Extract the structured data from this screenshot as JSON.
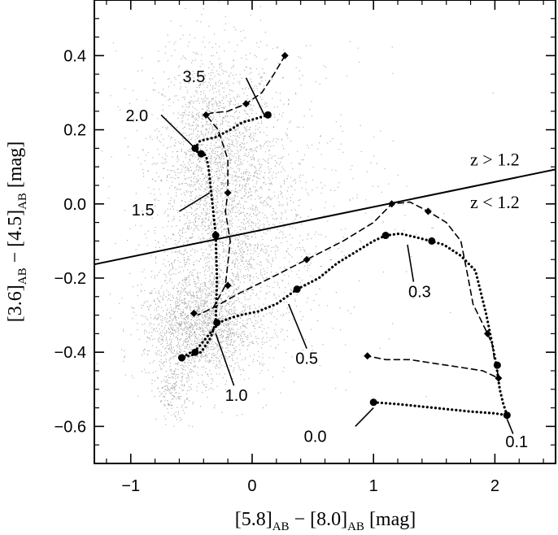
{
  "chart_data": {
    "type": "scatter",
    "title": "",
    "xlabel": {
      "a": "[5.8]",
      "a_sub": "AB",
      "mid": " − ",
      "b": "[8.0]",
      "b_sub": "AB",
      "unit": " [mag]"
    },
    "ylabel": {
      "a": "[3.6]",
      "a_sub": "AB",
      "mid": " − ",
      "b": "[4.5]",
      "b_sub": "AB",
      "unit": " [mag]"
    },
    "xlim": [
      -1.3,
      2.5
    ],
    "ylim": [
      -0.7,
      0.55
    ],
    "xticks": [
      {
        "value": -1,
        "label": "−1"
      },
      {
        "value": 0,
        "label": "0"
      },
      {
        "value": 1,
        "label": "1"
      },
      {
        "value": 2,
        "label": "2"
      }
    ],
    "yticks": [
      {
        "value": 0.4,
        "label": "0.4"
      },
      {
        "value": 0.2,
        "label": "0.2"
      },
      {
        "value": 0.0,
        "label": "0.0"
      },
      {
        "value": -0.2,
        "label": "−0.2"
      },
      {
        "value": -0.4,
        "label": "−0.4"
      },
      {
        "value": -0.6,
        "label": "−0.6"
      }
    ],
    "background_points": {
      "description_color": "#a8a8a8",
      "clusters": [
        {
          "cx": -0.3,
          "cy": 0.12,
          "sx": 0.25,
          "sy": 0.15,
          "n": 1900
        },
        {
          "cx": -0.45,
          "cy": -0.33,
          "sx": 0.22,
          "sy": 0.07,
          "n": 1700
        },
        {
          "cx": -0.15,
          "cy": -0.13,
          "sx": 0.3,
          "sy": 0.13,
          "n": 1000
        },
        {
          "cx": -0.65,
          "cy": -0.5,
          "sx": 0.07,
          "sy": 0.04,
          "n": 200
        },
        {
          "cx": 0.0,
          "cy": 0.0,
          "sx": 0.6,
          "sy": 0.25,
          "n": 700
        }
      ]
    },
    "dividing_line": {
      "x": [
        -1.3,
        2.5
      ],
      "y": [
        -0.163,
        0.093
      ]
    },
    "region_labels": [
      {
        "text": "z > 1.2",
        "x": 2.0,
        "y": 0.115
      },
      {
        "text": "z < 1.2",
        "x": 2.0,
        "y": 0.0
      }
    ],
    "series": [
      {
        "style": "dotted",
        "marker": "circle",
        "x": [
          2.1,
          2.07,
          2.04,
          2.01,
          1.98,
          1.93,
          1.84,
          1.72,
          1.58,
          1.47,
          1.35,
          1.22,
          1.1,
          1.0,
          0.85,
          0.7,
          0.55,
          0.37,
          0.2,
          0.05,
          -0.1,
          -0.2,
          -0.27,
          -0.35,
          -0.45,
          -0.58,
          -0.52,
          -0.42,
          -0.34,
          -0.3,
          -0.29,
          -0.3,
          -0.32,
          -0.34,
          -0.36,
          -0.38,
          -0.4,
          -0.45,
          -0.47,
          -0.43,
          -0.3,
          -0.18,
          -0.08,
          0.03,
          0.13
        ],
        "y": [
          -0.57,
          -0.54,
          -0.5,
          -0.43,
          -0.38,
          -0.3,
          -0.18,
          -0.14,
          -0.11,
          -0.1,
          -0.09,
          -0.08,
          -0.085,
          -0.1,
          -0.13,
          -0.16,
          -0.2,
          -0.23,
          -0.27,
          -0.29,
          -0.3,
          -0.31,
          -0.32,
          -0.35,
          -0.39,
          -0.415,
          -0.41,
          -0.4,
          -0.36,
          -0.32,
          -0.2,
          -0.085,
          -0.02,
          0.04,
          0.1,
          0.13,
          0.135,
          0.14,
          0.15,
          0.17,
          0.18,
          0.2,
          0.22,
          0.23,
          0.24
        ]
      },
      {
        "style": "dotted",
        "marker": "none",
        "x": [
          1.0,
          1.2,
          1.5,
          1.8,
          2.0,
          2.1
        ],
        "y": [
          -0.535,
          -0.54,
          -0.55,
          -0.56,
          -0.565,
          -0.57
        ]
      },
      {
        "style": "dashed",
        "marker": "diamond",
        "x": [
          0.27,
          0.18,
          0.08,
          -0.05,
          -0.2,
          -0.34,
          -0.38,
          -0.28,
          -0.2,
          -0.2,
          -0.22,
          -0.18,
          -0.22,
          -0.32,
          -0.45,
          -0.32,
          -0.1,
          0.15,
          0.45,
          0.75,
          1.0,
          1.15,
          1.3,
          1.45,
          1.6,
          1.72,
          1.78,
          1.82,
          1.88,
          1.94,
          1.98,
          2.0,
          2.02,
          2.03,
          1.9,
          1.7,
          1.5,
          1.3,
          1.1,
          0.95
        ],
        "y": [
          0.4,
          0.35,
          0.3,
          0.27,
          0.25,
          0.245,
          0.24,
          0.2,
          0.12,
          0.03,
          -0.02,
          -0.1,
          -0.22,
          -0.28,
          -0.3,
          -0.28,
          -0.24,
          -0.2,
          -0.15,
          -0.1,
          -0.05,
          0.0,
          0.005,
          -0.02,
          -0.05,
          -0.1,
          -0.2,
          -0.27,
          -0.31,
          -0.35,
          -0.38,
          -0.43,
          -0.45,
          -0.47,
          -0.45,
          -0.44,
          -0.43,
          -0.42,
          -0.42,
          -0.41
        ]
      }
    ],
    "markers": [
      {
        "shape": "circle",
        "x": 2.1,
        "y": -0.57
      },
      {
        "shape": "circle",
        "x": 1.0,
        "y": -0.535
      },
      {
        "shape": "circle",
        "x": 2.02,
        "y": -0.435
      },
      {
        "shape": "circle",
        "x": 1.48,
        "y": -0.1
      },
      {
        "shape": "circle",
        "x": 1.1,
        "y": -0.085
      },
      {
        "shape": "circle",
        "x": 0.37,
        "y": -0.23
      },
      {
        "shape": "circle",
        "x": -0.29,
        "y": -0.32
      },
      {
        "shape": "circle",
        "x": -0.47,
        "y": -0.4
      },
      {
        "shape": "circle",
        "x": -0.58,
        "y": -0.415
      },
      {
        "shape": "circle",
        "x": -0.3,
        "y": -0.085
      },
      {
        "shape": "circle",
        "x": -0.42,
        "y": 0.135
      },
      {
        "shape": "circle",
        "x": -0.47,
        "y": 0.15
      },
      {
        "shape": "circle",
        "x": 0.13,
        "y": 0.24
      },
      {
        "shape": "diamond",
        "x": 0.27,
        "y": 0.4
      },
      {
        "shape": "diamond",
        "x": -0.05,
        "y": 0.27
      },
      {
        "shape": "diamond",
        "x": -0.38,
        "y": 0.24
      },
      {
        "shape": "diamond",
        "x": -0.2,
        "y": 0.03
      },
      {
        "shape": "diamond",
        "x": -0.2,
        "y": -0.22
      },
      {
        "shape": "diamond",
        "x": -0.48,
        "y": -0.295
      },
      {
        "shape": "diamond",
        "x": 0.45,
        "y": -0.15
      },
      {
        "shape": "diamond",
        "x": 1.15,
        "y": 0.0
      },
      {
        "shape": "diamond",
        "x": 1.45,
        "y": -0.02
      },
      {
        "shape": "diamond",
        "x": 1.94,
        "y": -0.35
      },
      {
        "shape": "diamond",
        "x": 2.03,
        "y": -0.47
      },
      {
        "shape": "diamond",
        "x": 0.95,
        "y": -0.41
      }
    ],
    "annotations": [
      {
        "text": "3.5",
        "tx": -0.48,
        "ty": 0.34,
        "px": 0.1,
        "py": 0.24,
        "lx": -0.05,
        "ly": 0.34
      },
      {
        "text": "2.0",
        "tx": -0.95,
        "ty": 0.235,
        "px": -0.47,
        "py": 0.15,
        "lx": -0.75,
        "ly": 0.24
      },
      {
        "text": "1.5",
        "tx": -0.9,
        "ty": -0.02,
        "px": -0.35,
        "py": 0.03,
        "lx": -0.6,
        "ly": -0.02
      },
      {
        "text": "0.3",
        "tx": 1.38,
        "ty": -0.24,
        "px": 1.28,
        "py": -0.11,
        "lx": 1.33,
        "ly": -0.21
      },
      {
        "text": "0.5",
        "tx": 0.45,
        "ty": -0.42,
        "px": 0.3,
        "py": -0.27,
        "lx": 0.45,
        "ly": -0.39
      },
      {
        "text": "1.0",
        "tx": -0.13,
        "ty": -0.52,
        "px": -0.3,
        "py": -0.35,
        "lx": -0.15,
        "ly": -0.49
      },
      {
        "text": "0.0",
        "tx": 0.52,
        "ty": -0.63,
        "px": 1.0,
        "py": -0.55,
        "lx": 0.85,
        "ly": -0.6
      },
      {
        "text": "0.1",
        "tx": 2.18,
        "ty": -0.645,
        "px": 2.1,
        "py": -0.58,
        "lx": 2.15,
        "ly": -0.62
      }
    ]
  }
}
